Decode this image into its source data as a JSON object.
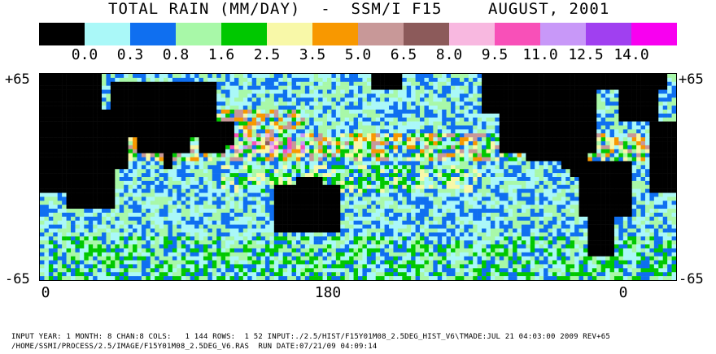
{
  "title": {
    "part1": "TOTAL RAIN (MM/DAY)  -  SSM/I F15",
    "part2": "AUGUST, 2001"
  },
  "legend": {
    "colors": [
      "#000000",
      "#aaf8f8",
      "#0f6ff0",
      "#a8f8a8",
      "#00c800",
      "#f8f8a8",
      "#f89800",
      "#c89898",
      "#8c5a5a",
      "#f8b8e0",
      "#f850b8",
      "#c898f8",
      "#a040f0",
      "#f800f0"
    ],
    "labels": [
      "0.0",
      "0.3",
      "0.8",
      "1.6",
      "2.5",
      "3.5",
      "5.0",
      "6.5",
      "8.0",
      "9.5",
      "11.0",
      "12.5",
      "14.0"
    ]
  },
  "axes": {
    "lat_top": "+65",
    "lat_bottom": "-65",
    "lon_labels": [
      "0",
      "180",
      "0"
    ]
  },
  "footer": {
    "line1": "INPUT YEAR: 1 MONTH: 8 CHAN:8 COLS:   1 144 ROWS:  1 52 INPUT:./2.5/HIST/F15Y01M08_2.5DEG_HIST_V6\\TMADE:JUL 21 04:03:00 2009 REV+65",
    "line2": "/HOME/SSMI/PROCESS/2.5/IMAGE/F15Y01M08_2.5DEG_V6.RAS  RUN DATE:07/21/09 04:09:14"
  }
}
